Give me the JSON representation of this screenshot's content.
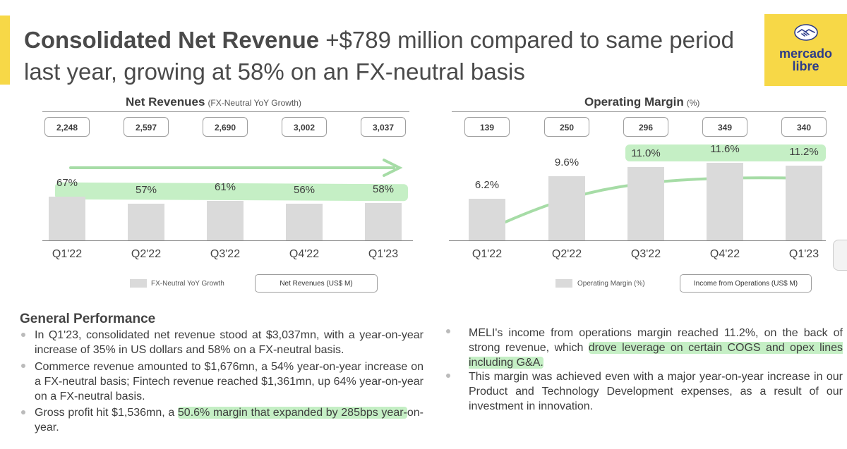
{
  "header": {
    "title_bold": "Consolidated Net Revenue",
    "title_rest": " +$789 million compared to same period last year, growing at 58% on an FX-neutral basis",
    "logo_line1": "mercado",
    "logo_line2": "libre"
  },
  "colors": {
    "accent": "#f7d847",
    "bar": "#dadada",
    "highlight": "#96e196",
    "logo_text": "#2c3b8a"
  },
  "chart_data": [
    {
      "type": "bar",
      "title": "Net Revenues",
      "subtitle": "(FX-Neutral YoY Growth)",
      "categories": [
        "Q1'22",
        "Q2'22",
        "Q3'22",
        "Q4'22",
        "Q1'23"
      ],
      "series": [
        {
          "name": "FX-Neutral YoY Growth",
          "values": [
            67,
            57,
            61,
            56,
            58
          ],
          "labels": [
            "67%",
            "57%",
            "61%",
            "56%",
            "58%"
          ]
        },
        {
          "name": "Net Revenues (US$ M)",
          "values": [
            2248,
            2597,
            2690,
            3002,
            3037
          ],
          "labels": [
            "2,248",
            "2,597",
            "2,690",
            "3,002",
            "3,037"
          ]
        }
      ],
      "legend_position": "bottom"
    },
    {
      "type": "bar",
      "title": "Operating Margin",
      "subtitle": "(%)",
      "categories": [
        "Q1'22",
        "Q2'22",
        "Q3'22",
        "Q4'22",
        "Q1'23"
      ],
      "series": [
        {
          "name": "Operating Margin (%)",
          "values": [
            6.2,
            9.6,
            11.0,
            11.6,
            11.2
          ],
          "labels": [
            "6.2%",
            "9.6%",
            "11.0%",
            "11.6%",
            "11.2%"
          ]
        },
        {
          "name": "Income from Operations (US$ M)",
          "values": [
            139,
            250,
            296,
            349,
            340
          ],
          "labels": [
            "139",
            "250",
            "296",
            "349",
            "340"
          ]
        }
      ],
      "legend_position": "bottom"
    }
  ],
  "performance": {
    "title": "General Performance",
    "left": [
      {
        "text": "In Q1'23, consolidated net revenue stood at $3,037mn, with a year-on-year increase of 35% in US dollars and 58% on a FX-neutral basis."
      },
      {
        "text": "Commerce revenue amounted to $1,676mn, a 54% year-on-year increase on a FX-neutral basis; Fintech revenue reached $1,361mn, up 64% year-on-year on a FX-neutral basis."
      },
      {
        "pre": "Gross profit hit $1,536mn, a ",
        "mark": "50.6% margin that expanded by 285bps year-",
        "post": "on-year."
      }
    ],
    "right": [
      {
        "pre": "MELI's income from operations margin reached 11.2%, on the back of strong revenue, which ",
        "mark": "drove leverage on certain COGS and opex lines including G&A.",
        "post": ""
      },
      {
        "text": "This margin was achieved even with a major year-on-year increase in our Product and Technology Development expenses, as a result of our investment in innovation."
      }
    ]
  }
}
